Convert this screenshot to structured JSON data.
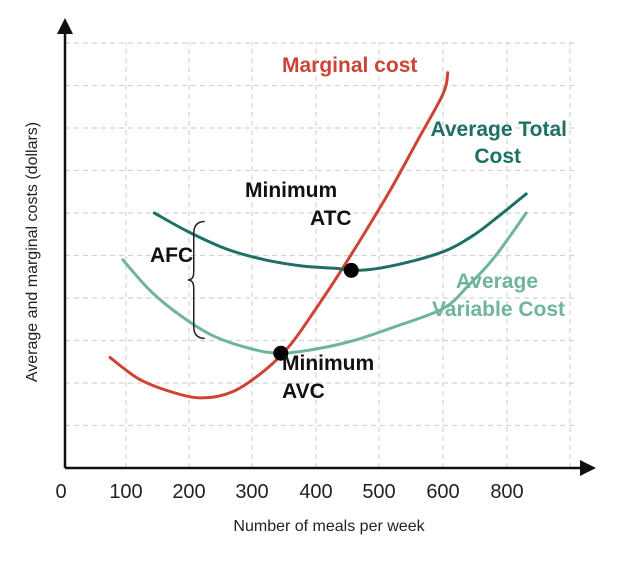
{
  "chart_data": {
    "type": "line",
    "xlabel": "Number of meals per week",
    "ylabel": "Average and marginal costs (dollars)",
    "x_origin_label": "0",
    "x_ticks": [
      "100",
      "200",
      "300",
      "400",
      "500",
      "600",
      "800"
    ],
    "grid": true,
    "series": [
      {
        "name": "Marginal cost",
        "color": "#cc4433",
        "points": [
          [
            75,
            2.6
          ],
          [
            120,
            2.1
          ],
          [
            170,
            1.8
          ],
          [
            220,
            1.65
          ],
          [
            270,
            1.8
          ],
          [
            320,
            2.3
          ],
          [
            360,
            2.9
          ],
          [
            400,
            3.75
          ],
          [
            440,
            4.65
          ],
          [
            480,
            5.6
          ],
          [
            520,
            6.6
          ],
          [
            560,
            7.7
          ],
          [
            600,
            8.8
          ],
          [
            615,
            9.3
          ]
        ]
      },
      {
        "name": "Average Total Cost",
        "color": "#1e7065",
        "points": [
          [
            145,
            6.0
          ],
          [
            200,
            5.55
          ],
          [
            260,
            5.15
          ],
          [
            320,
            4.9
          ],
          [
            380,
            4.75
          ],
          [
            430,
            4.7
          ],
          [
            460,
            4.65
          ],
          [
            500,
            4.7
          ],
          [
            560,
            4.9
          ],
          [
            620,
            5.15
          ],
          [
            700,
            5.5
          ],
          [
            770,
            5.9
          ],
          [
            860,
            6.45
          ]
        ]
      },
      {
        "name": "Average Variable Cost",
        "color": "#6eb59a",
        "points": [
          [
            95,
            4.9
          ],
          [
            140,
            4.15
          ],
          [
            190,
            3.55
          ],
          [
            240,
            3.1
          ],
          [
            300,
            2.8
          ],
          [
            345,
            2.7
          ],
          [
            400,
            2.8
          ],
          [
            460,
            3.0
          ],
          [
            520,
            3.3
          ],
          [
            600,
            3.75
          ],
          [
            680,
            4.3
          ],
          [
            760,
            4.95
          ],
          [
            860,
            6.0
          ]
        ]
      }
    ],
    "points": [
      {
        "label": "Minimum ATC",
        "x": 456,
        "y": 4.65
      },
      {
        "label": "Minimum AVC",
        "x": 345,
        "y": 2.7
      }
    ],
    "afc_bracket": {
      "label": "AFC",
      "x": 225,
      "y_top": 5.8,
      "y_bottom": 3.05
    },
    "labels": {
      "marginal_cost": "Marginal cost",
      "atc_line1": "Average Total",
      "atc_line2": "Cost",
      "avc_line1": "Average",
      "avc_line2": "Variable Cost",
      "min_atc_line1": "Minimum",
      "min_atc_line2": "ATC",
      "min_avc_line1": "Minimum",
      "min_avc_line2": "AVC",
      "afc": "AFC"
    }
  }
}
